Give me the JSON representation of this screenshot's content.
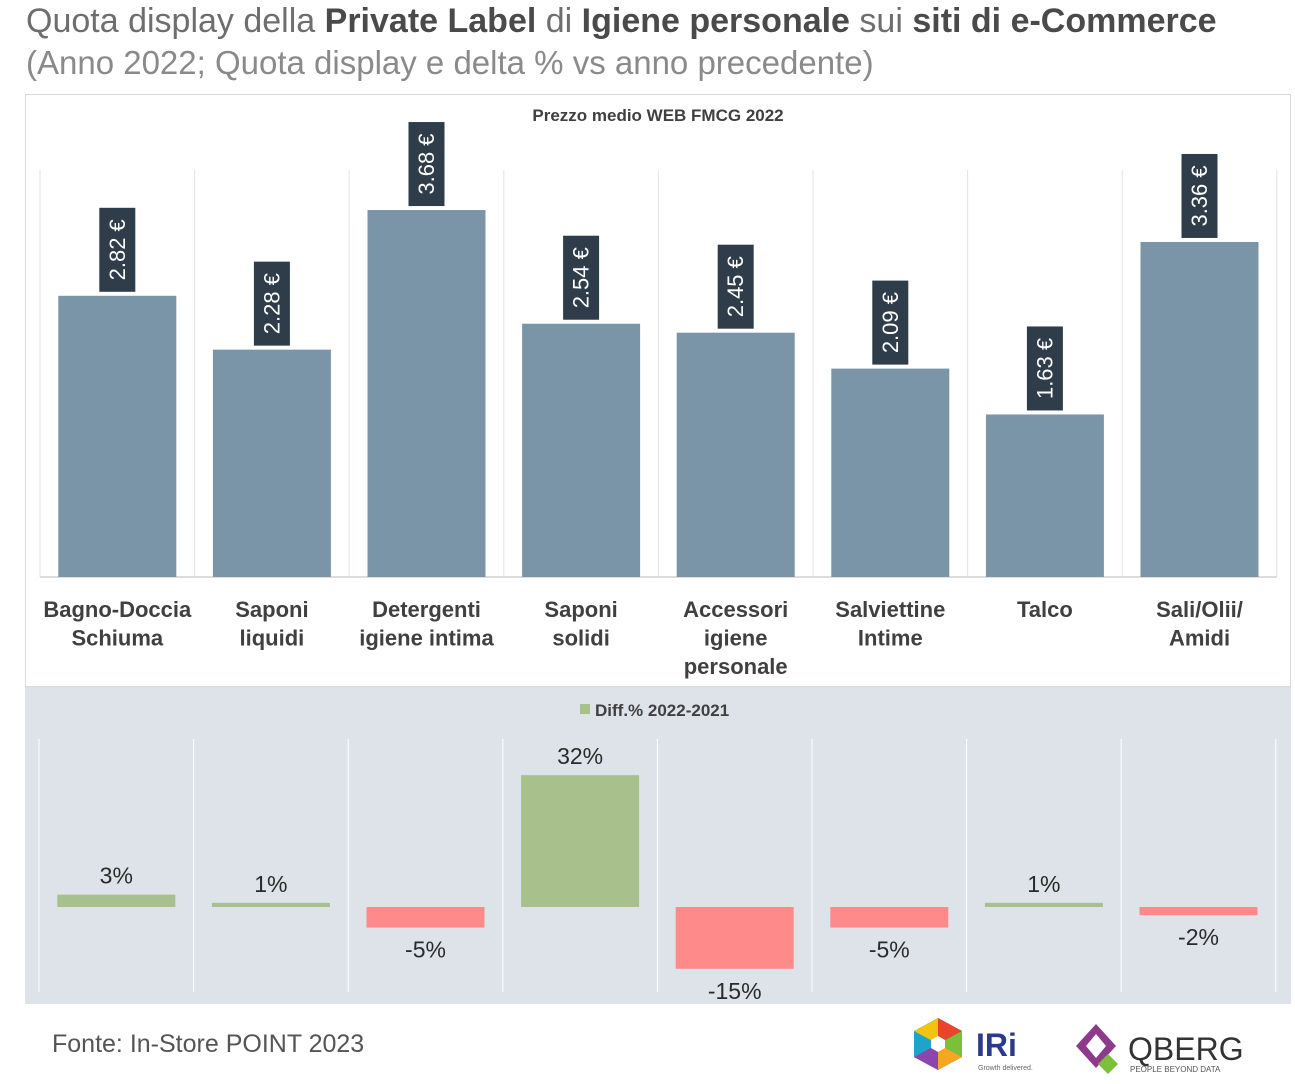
{
  "header": {
    "title_parts": [
      {
        "text": "Quota display della ",
        "bold": false
      },
      {
        "text": "Private Label",
        "bold": true
      },
      {
        "text": " di ",
        "bold": false
      },
      {
        "text": "Igiene personale",
        "bold": true
      },
      {
        "text": " sui ",
        "bold": false
      },
      {
        "text": "siti di e-Commerce",
        "bold": true
      }
    ],
    "subtitle": "(Anno 2022; Quota display e delta %  vs anno precedente)"
  },
  "chart_data": [
    {
      "type": "bar",
      "title": "Prezzo medio WEB FMCG 2022",
      "categories": [
        [
          "Bagno-Doccia",
          "Schiuma"
        ],
        [
          "Saponi",
          "liquidi"
        ],
        [
          "Detergenti",
          "igiene intima"
        ],
        [
          "Saponi",
          "solidi"
        ],
        [
          "Accessori",
          "igiene",
          "personale"
        ],
        [
          "Salviettine",
          "Intime"
        ],
        [
          "Talco"
        ],
        [
          "Sali/Olii/",
          "Amidi"
        ]
      ],
      "values": [
        2.82,
        2.28,
        3.68,
        2.54,
        2.45,
        2.09,
        1.63,
        3.36
      ],
      "labels": [
        "2.82 €",
        "2.28 €",
        "3.68 €",
        "2.54 €",
        "2.45 €",
        "2.09 €",
        "1.63 €",
        "3.36 €"
      ],
      "ylim": [
        0,
        4
      ],
      "bar_color": "#7a95a8",
      "label_bg": "#2f3d4a"
    },
    {
      "type": "bar",
      "title": "Diff.% 2022-2021",
      "values": [
        3,
        1,
        -5,
        32,
        -15,
        -5,
        1,
        -2
      ],
      "labels": [
        "3%",
        "1%",
        "-5%",
        "32%",
        "-15%",
        "-5%",
        "1%",
        "-2%"
      ],
      "ylim": [
        -22,
        40
      ],
      "positive_color": "#a8c08c",
      "negative_color": "#ff8a8a"
    }
  ],
  "footer": {
    "source": "Fonte: In-Store POINT 2023",
    "logo_iri": "IRi",
    "logo_iri_tagline": "Growth delivered.",
    "logo_qberg": "QBERG",
    "logo_qberg_tagline": "PEOPLE BEYOND DATA"
  }
}
